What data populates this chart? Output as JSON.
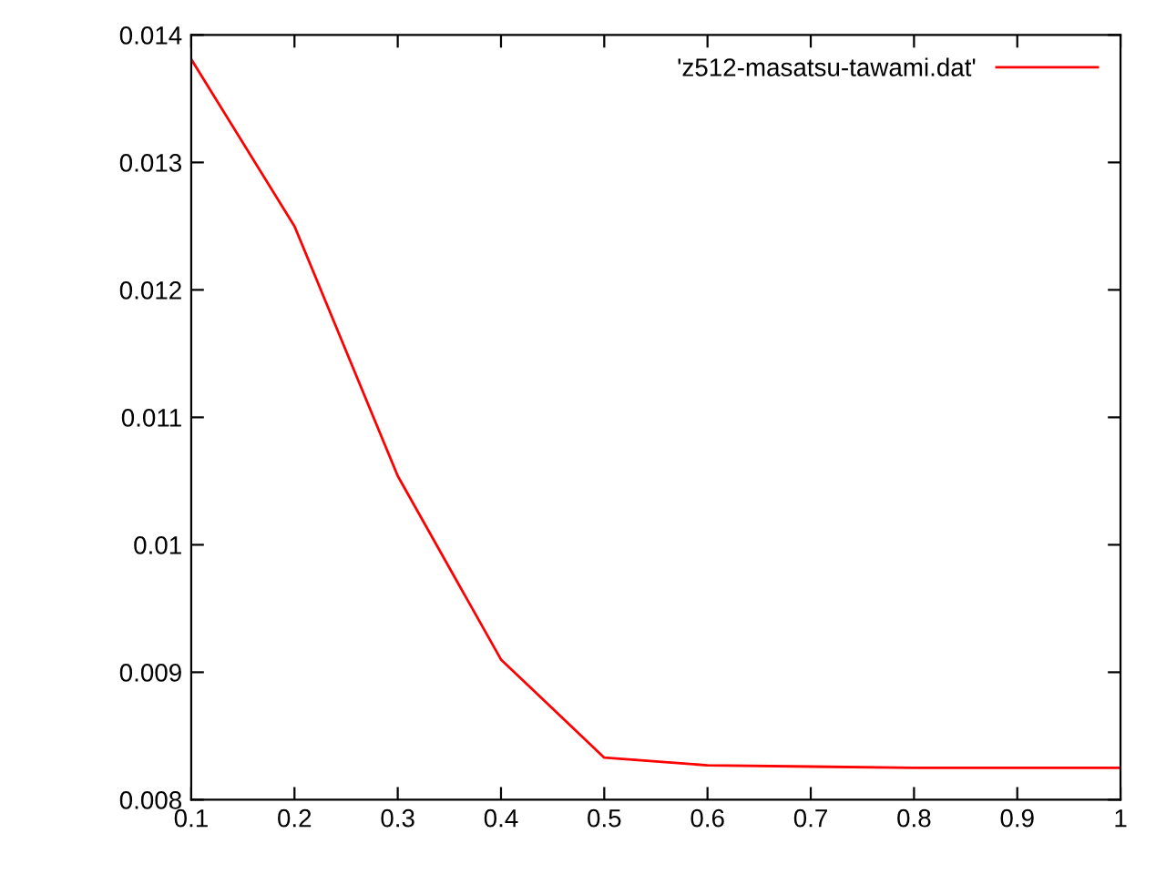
{
  "chart_data": {
    "type": "line",
    "x": [
      0.1,
      0.2,
      0.3,
      0.4,
      0.5,
      0.6,
      0.7,
      0.8,
      0.9,
      1
    ],
    "series": [
      {
        "name": "'z512-masatsu-tawami.dat'",
        "color": "#ff0000",
        "values": [
          0.01381,
          0.0125,
          0.01054,
          0.0091,
          0.00833,
          0.00827,
          0.00826,
          0.00825,
          0.00825,
          0.00825
        ]
      }
    ],
    "xlim": [
      0.1,
      1
    ],
    "ylim": [
      0.008,
      0.014
    ],
    "xticks": [
      0.1,
      0.2,
      0.3,
      0.4,
      0.5,
      0.6,
      0.7,
      0.8,
      0.9,
      1
    ],
    "yticks": [
      0.008,
      0.009,
      0.01,
      0.011,
      0.012,
      0.013,
      0.014
    ],
    "grid": false,
    "legend": "top right",
    "marker": "none",
    "line_style": "solid"
  }
}
